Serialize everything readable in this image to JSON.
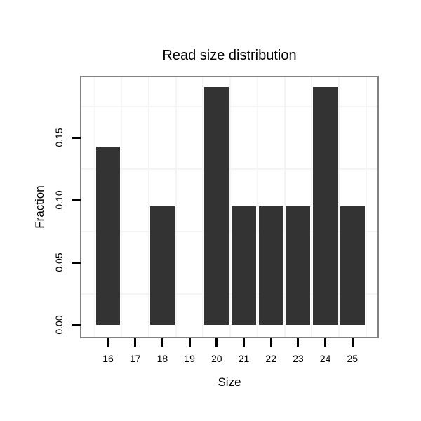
{
  "chart_data": {
    "type": "bar",
    "title": "Read size distribution",
    "xlabel": "Size",
    "ylabel": "Fraction",
    "categories": [
      16,
      17,
      18,
      19,
      20,
      21,
      22,
      23,
      24,
      25
    ],
    "values": [
      0.1429,
      0,
      0.0952,
      0,
      0.1905,
      0.0952,
      0.0952,
      0.0952,
      0.1905,
      0.0952
    ],
    "x_tick_labels": [
      "16",
      "17",
      "18",
      "19",
      "20",
      "21",
      "22",
      "23",
      "24",
      "25"
    ],
    "y_ticks": [
      0.0,
      0.05,
      0.1,
      0.15
    ],
    "y_tick_labels": [
      "0.00",
      "0.05",
      "0.10",
      "0.15"
    ],
    "xlim": [
      15.05,
      25.95
    ],
    "ylim": [
      -0.0095,
      0.1995
    ],
    "bar_width_fraction": 0.9,
    "grid": "minor-only",
    "minor_grid_x": [
      15.5,
      16.5,
      17.5,
      18.5,
      19.5,
      20.5,
      21.5,
      22.5,
      23.5,
      24.5,
      25.5
    ],
    "minor_grid_y": [
      0.025,
      0.075,
      0.125,
      0.175
    ],
    "legend": "none",
    "colors": {
      "bar": "#333333",
      "panel_border": "#828282",
      "gridline_minor": "#f4f4f4",
      "tick": "#000000",
      "text": "#000000",
      "panel_background": "#ffffff",
      "page_background": "#ffffff"
    }
  }
}
